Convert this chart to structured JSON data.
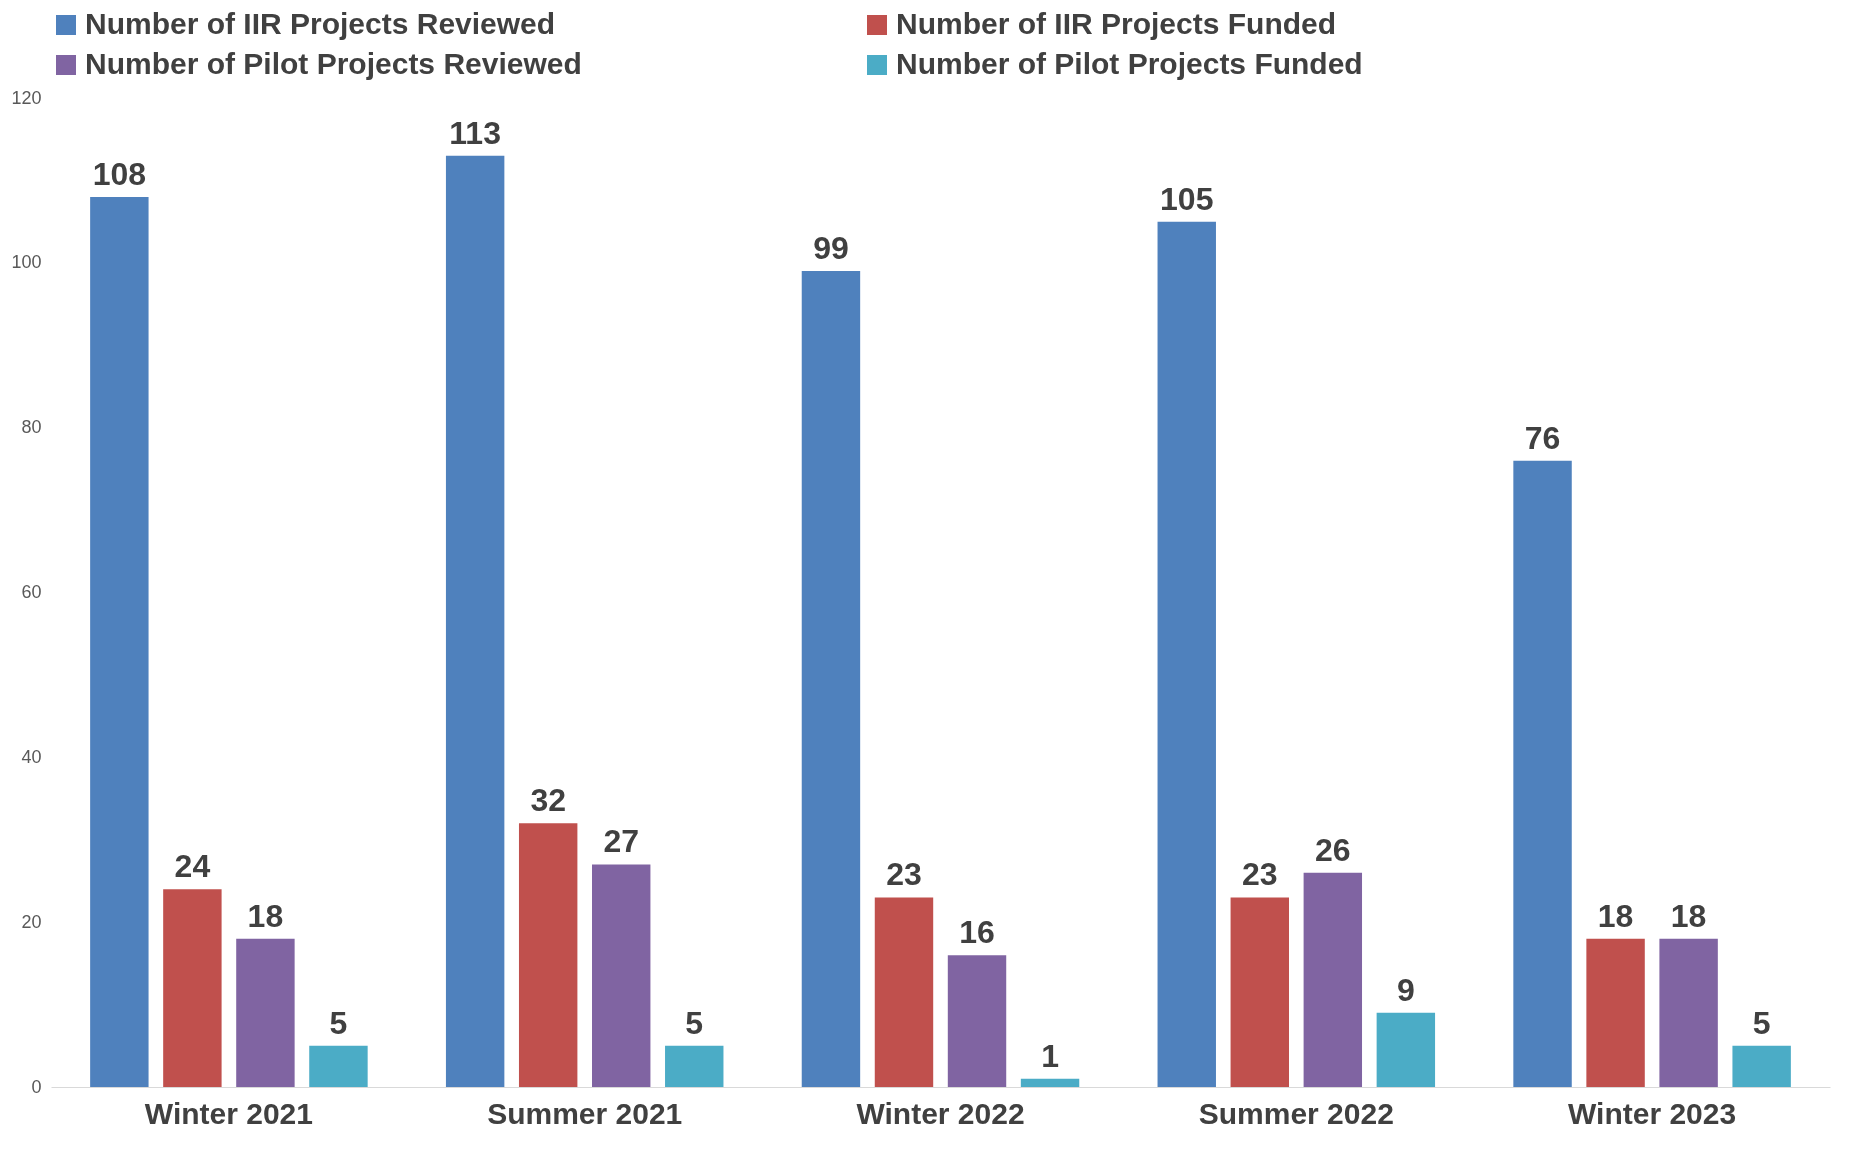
{
  "chart_data": {
    "type": "bar",
    "categories": [
      "Winter 2021",
      "Summer 2021",
      "Winter 2022",
      "Summer 2022",
      "Winter 2023"
    ],
    "series": [
      {
        "name": "Number of IIR Projects Reviewed",
        "color": "#4f81bd",
        "values": [
          108,
          113,
          99,
          105,
          76
        ]
      },
      {
        "name": "Number of IIR Projects Funded",
        "color": "#c0504d",
        "values": [
          24,
          32,
          23,
          23,
          18
        ]
      },
      {
        "name": "Number of Pilot Projects Reviewed",
        "color": "#8064a2",
        "values": [
          18,
          27,
          16,
          26,
          18
        ]
      },
      {
        "name": "Number of Pilot Projects Funded",
        "color": "#4bacc6",
        "values": [
          5,
          5,
          1,
          9,
          5
        ]
      }
    ],
    "ylim": [
      0,
      120
    ],
    "yticks": [
      0,
      20,
      40,
      60,
      80,
      100,
      120
    ],
    "grid": false,
    "legend": "top",
    "data_labels": true
  }
}
